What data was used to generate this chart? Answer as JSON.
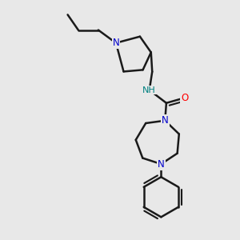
{
  "background_color": "#e8e8e8",
  "bond_color": "#1a1a1a",
  "N_color": "#0000cc",
  "O_color": "#ff0000",
  "H_color": "#008080",
  "line_width": 1.8,
  "figsize": [
    3.0,
    3.0
  ],
  "dpi": 100,
  "xlim": [
    0,
    10
  ],
  "ylim": [
    0,
    10
  ]
}
